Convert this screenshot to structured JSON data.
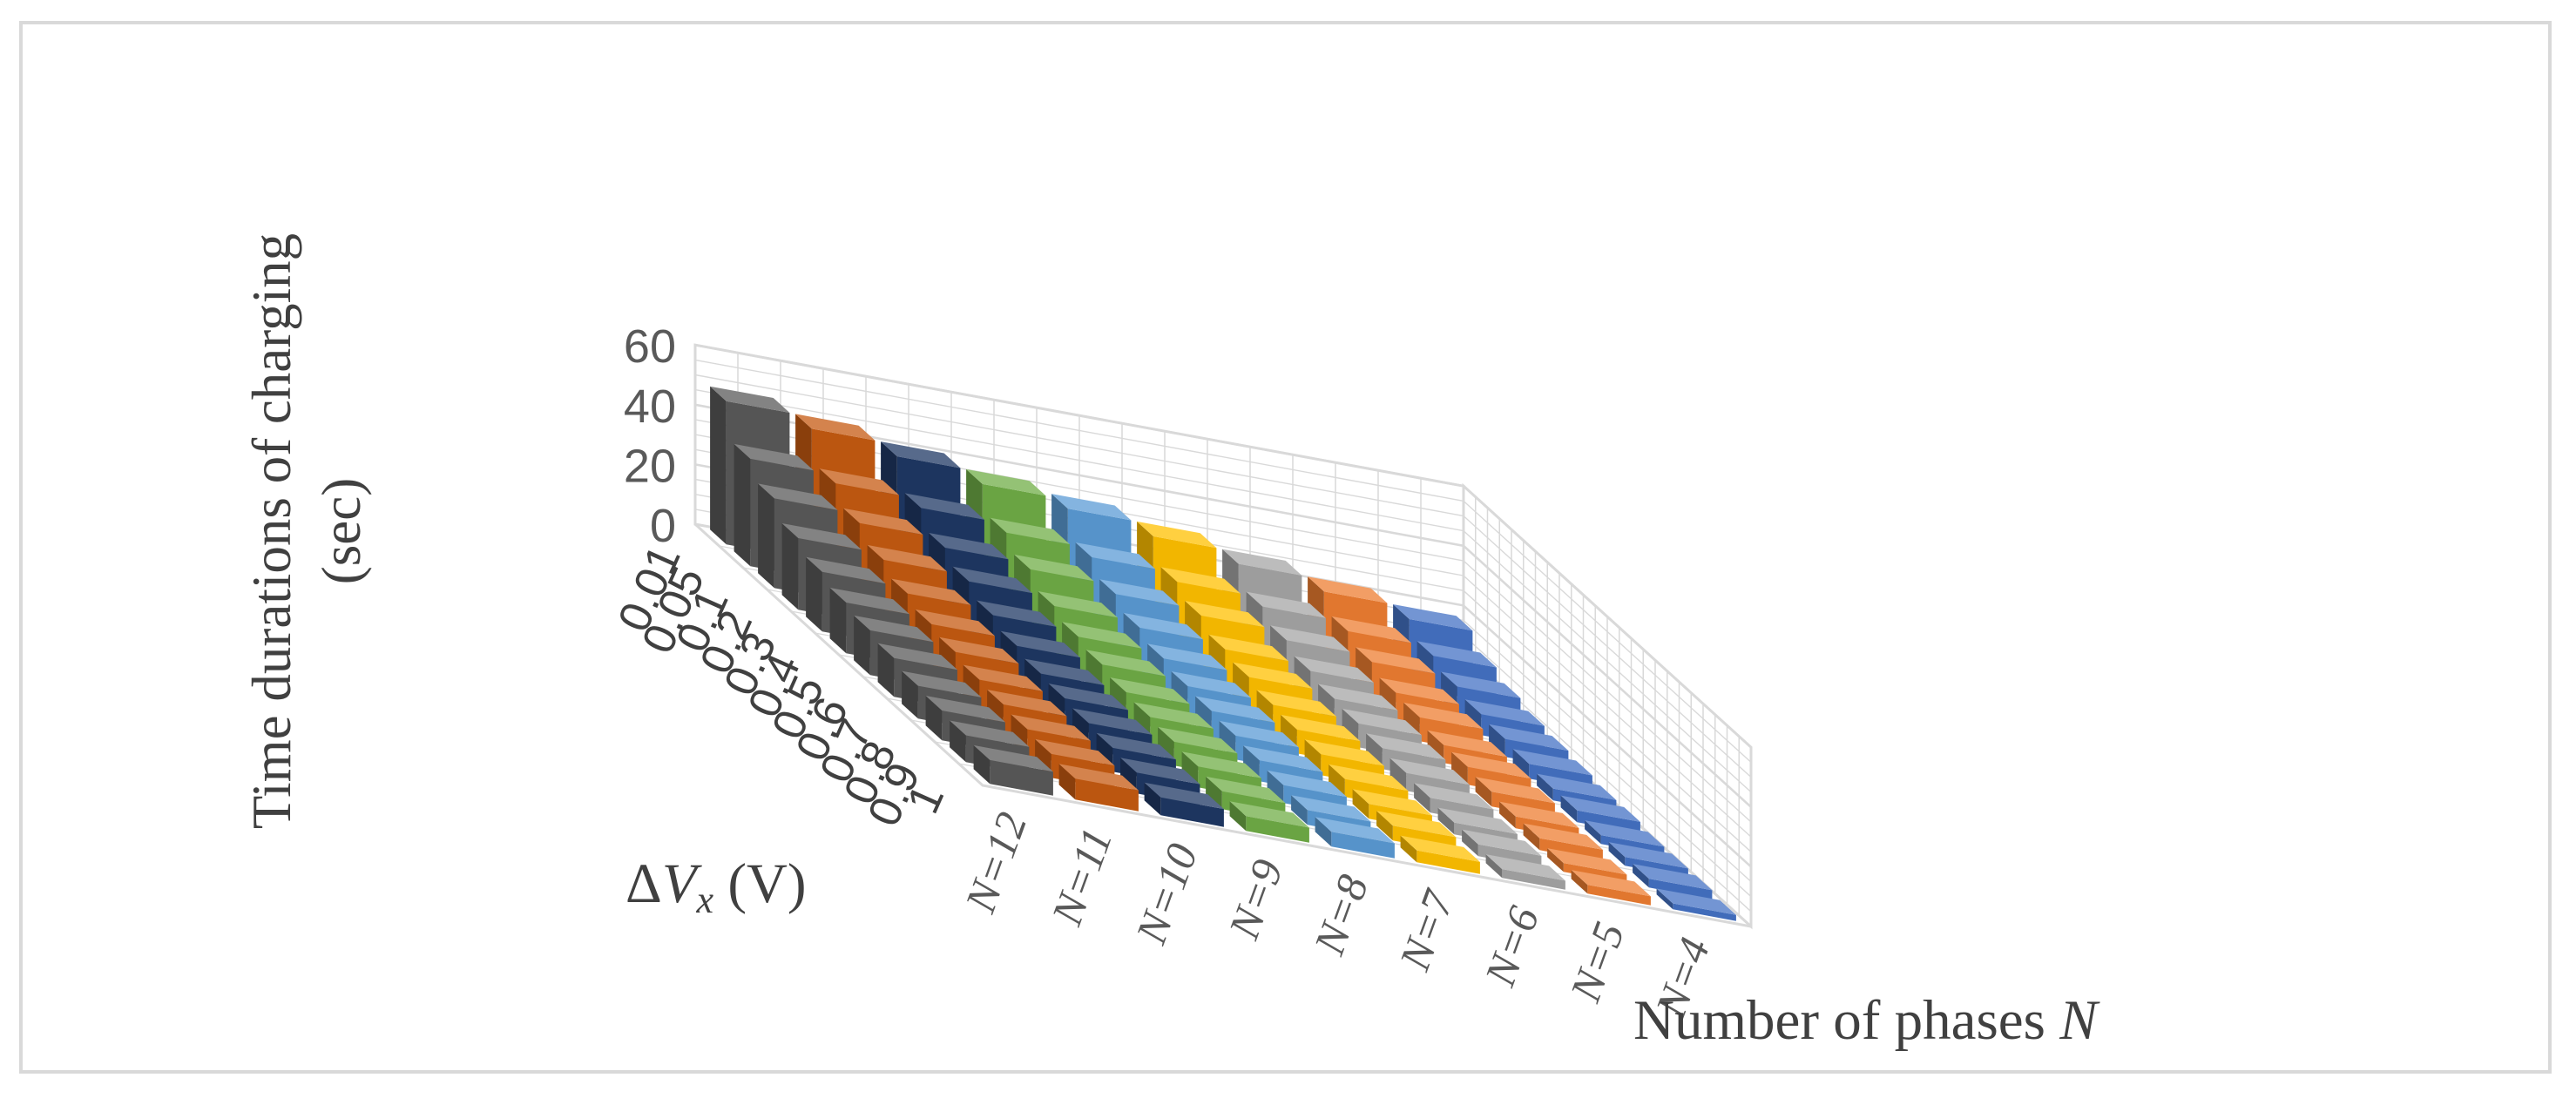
{
  "chart_data": {
    "type": "bar3d",
    "title": "",
    "zlabel_line1": "Time durations of charging",
    "zlabel_line2": "(sec)",
    "xlabel_main": "Number of phases ",
    "xlabel_var": "N",
    "ylabel_delta": "Δ",
    "ylabel_var": "V",
    "ylabel_sub": "x",
    "ylabel_unit": " (V)",
    "z_ticks": [
      "0",
      "20",
      "40",
      "60"
    ],
    "zlim": [
      0,
      60
    ],
    "grid": true,
    "legend": "none",
    "delta_v_values": [
      "0.01",
      "0.05",
      "0.1",
      "0.2",
      "0.3",
      "0.4",
      "0.5",
      "0.6",
      "0.7",
      "0.8",
      "0.9",
      "1"
    ],
    "series": [
      {
        "name": "N=12",
        "color": "#595959",
        "values": [
          48,
          36,
          30,
          24,
          20,
          17,
          15,
          13,
          11,
          10,
          9,
          8
        ]
      },
      {
        "name": "N=11",
        "color": "#c55a11",
        "values": [
          44,
          33,
          27,
          22,
          18,
          15,
          13,
          11,
          10,
          9,
          8,
          7
        ]
      },
      {
        "name": "N=10",
        "color": "#1f3864",
        "values": [
          40,
          30,
          24,
          20,
          16,
          13,
          11,
          10,
          9,
          8,
          7,
          6
        ]
      },
      {
        "name": "N=9",
        "color": "#70ad47",
        "values": [
          36,
          27,
          22,
          17,
          14,
          12,
          10,
          9,
          8,
          7,
          6,
          5
        ]
      },
      {
        "name": "N=8",
        "color": "#5b9bd5",
        "values": [
          33,
          24,
          19,
          15,
          12,
          10,
          9,
          8,
          7,
          6,
          5,
          5
        ]
      },
      {
        "name": "N=7",
        "color": "#ffc000",
        "values": [
          29,
          21,
          17,
          13,
          11,
          9,
          8,
          7,
          6,
          5,
          5,
          4
        ]
      },
      {
        "name": "N=6",
        "color": "#a5a5a5",
        "values": [
          25,
          18,
          14,
          11,
          9,
          8,
          7,
          6,
          5,
          4,
          4,
          3
        ]
      },
      {
        "name": "N=5",
        "color": "#ed7d31",
        "values": [
          21,
          15,
          12,
          9,
          8,
          6,
          6,
          5,
          4,
          4,
          3,
          3
        ]
      },
      {
        "name": "N=4",
        "color": "#4472c4",
        "values": [
          17,
          12,
          9,
          7,
          6,
          5,
          4,
          4,
          3,
          3,
          3,
          2
        ]
      }
    ]
  }
}
